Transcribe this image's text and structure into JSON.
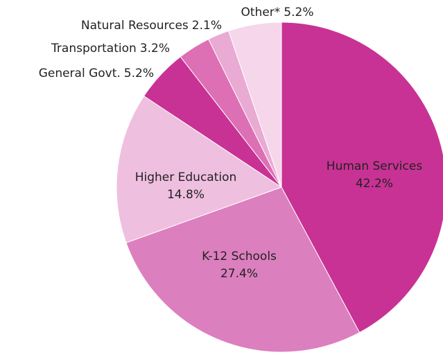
{
  "chart_data": {
    "type": "pie",
    "categories": [
      "Human Services",
      "K-12 Schools",
      "Higher Education",
      "General Govt.",
      "Transportation",
      "Natural Resources",
      "Other*"
    ],
    "values": [
      42.2,
      27.4,
      14.8,
      5.2,
      3.2,
      2.1,
      5.2
    ],
    "value_labels": [
      "42.2%",
      "27.4%",
      "14.8%",
      "5.2%",
      "3.2%",
      "2.1%",
      "5.2%"
    ],
    "colors": [
      "#c83294",
      "#dc7fbe",
      "#efbfdf",
      "#c83294",
      "#dd6fb5",
      "#e9aad3",
      "#f6d6eb"
    ]
  }
}
